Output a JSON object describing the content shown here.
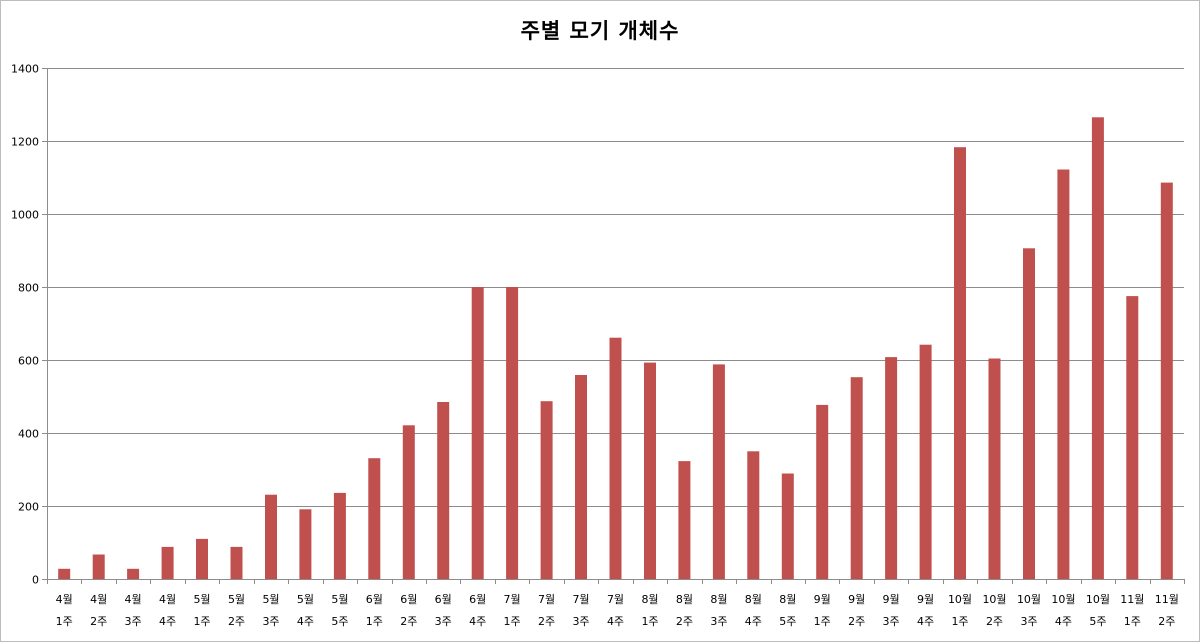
{
  "chart_data": {
    "type": "bar",
    "title": "주별 모기 개체수",
    "xlabel": "",
    "ylabel": "",
    "ylim": [
      0,
      1400
    ],
    "yticks": [
      0,
      200,
      400,
      600,
      800,
      1000,
      1200,
      1400
    ],
    "grid": true,
    "legend": "none",
    "bar_color": "#c0504d",
    "categories": [
      [
        "4월",
        "1주"
      ],
      [
        "4월",
        "2주"
      ],
      [
        "4월",
        "3주"
      ],
      [
        "4월",
        "4주"
      ],
      [
        "5월",
        "1주"
      ],
      [
        "5월",
        "2주"
      ],
      [
        "5월",
        "3주"
      ],
      [
        "5월",
        "4주"
      ],
      [
        "5월",
        "5주"
      ],
      [
        "6월",
        "1주"
      ],
      [
        "6월",
        "2주"
      ],
      [
        "6월",
        "3주"
      ],
      [
        "6월",
        "4주"
      ],
      [
        "7월",
        "1주"
      ],
      [
        "7월",
        "2주"
      ],
      [
        "7월",
        "3주"
      ],
      [
        "7월",
        "4주"
      ],
      [
        "8월",
        "1주"
      ],
      [
        "8월",
        "2주"
      ],
      [
        "8월",
        "3주"
      ],
      [
        "8월",
        "4주"
      ],
      [
        "8월",
        "5주"
      ],
      [
        "9월",
        "1주"
      ],
      [
        "9월",
        "2주"
      ],
      [
        "9월",
        "3주"
      ],
      [
        "9월",
        "4주"
      ],
      [
        "10월",
        "1주"
      ],
      [
        "10월",
        "2주"
      ],
      [
        "10월",
        "3주"
      ],
      [
        "10월",
        "4주"
      ],
      [
        "10월",
        "5주"
      ],
      [
        "11월",
        "1주"
      ],
      [
        "11월",
        "2주"
      ]
    ],
    "values": [
      28,
      67,
      28,
      88,
      110,
      88,
      231,
      191,
      236,
      331,
      421,
      485,
      800,
      800,
      487,
      559,
      661,
      593,
      323,
      588,
      350,
      289,
      477,
      553,
      608,
      642,
      1183,
      604,
      906,
      1122,
      1265,
      775,
      1086
    ]
  }
}
